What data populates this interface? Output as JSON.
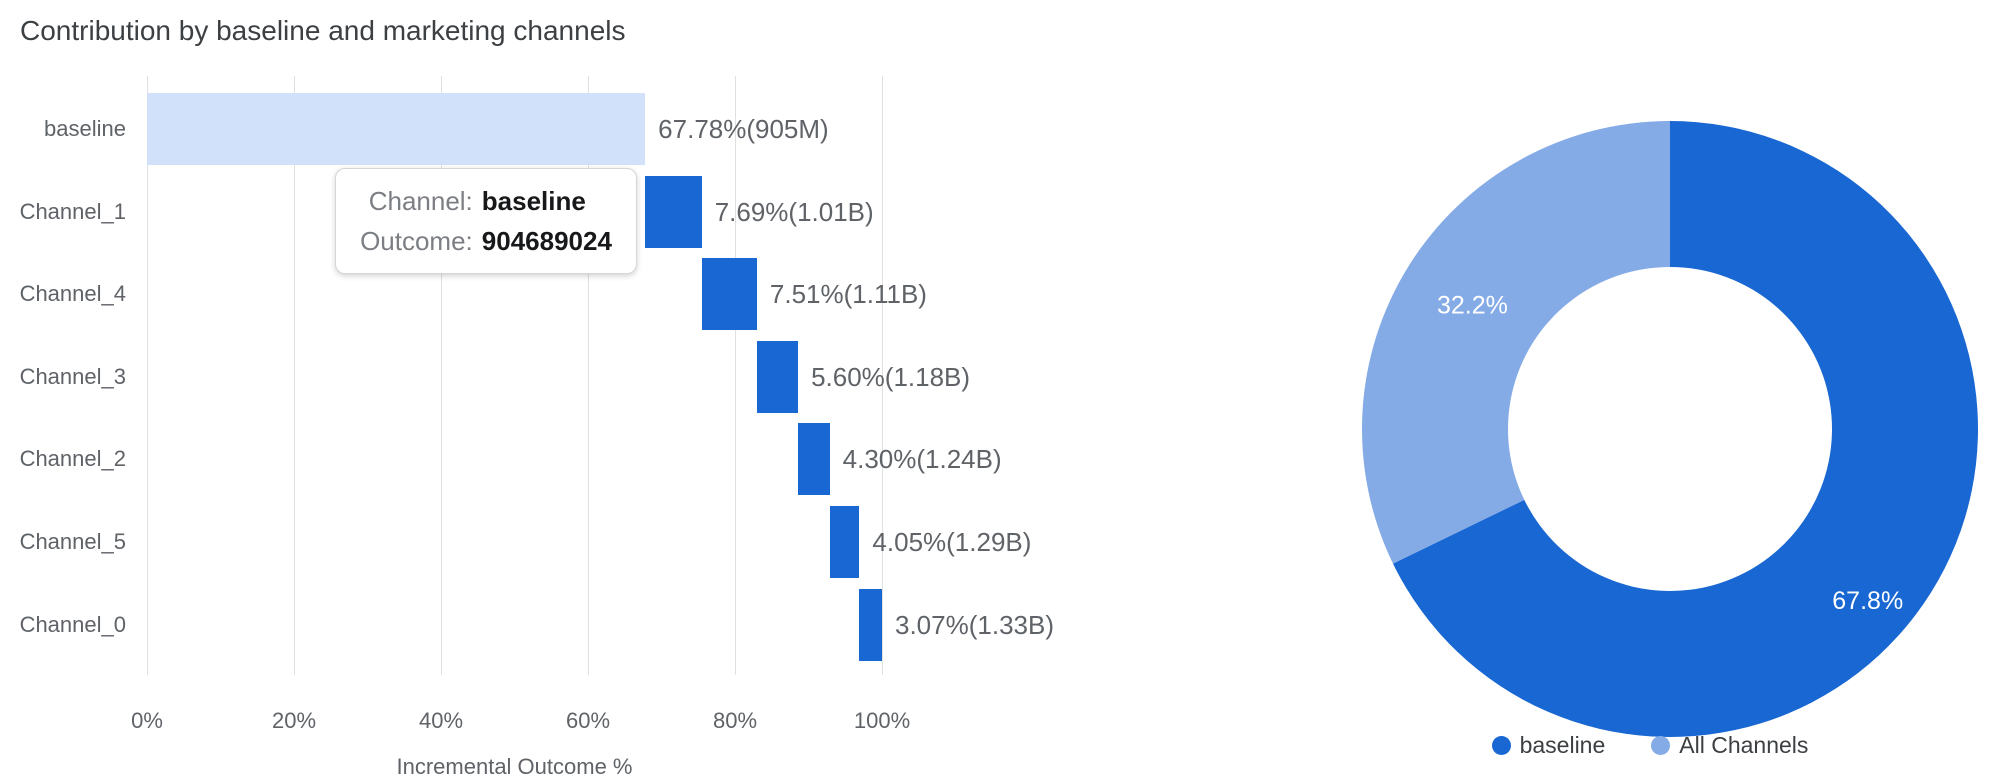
{
  "title": "Contribution by baseline and marketing channels",
  "colors": {
    "baseline_dark_blue": "#1967d2",
    "all_channels_light_blue": "#85abe6",
    "baseline_bar_fill": "#d0e1f9",
    "gridline": "#e0e0e0",
    "axis_text": "#5f6368",
    "title_text": "#3c4043"
  },
  "tooltip": {
    "rows": [
      {
        "label": "Channel:",
        "value": "baseline"
      },
      {
        "label": "Outcome:",
        "value": "904689024"
      }
    ]
  },
  "chart_data": [
    {
      "type": "bar",
      "variant": "horizontal-waterfall",
      "title": "Contribution by baseline and marketing channels",
      "categories": [
        "baseline",
        "Channel_1",
        "Channel_4",
        "Channel_3",
        "Channel_2",
        "Channel_5",
        "Channel_0"
      ],
      "series": [
        {
          "name": "Incremental Outcome %",
          "starts_pct": [
            0,
            67.78,
            75.47,
            82.98,
            88.58,
            92.88,
            96.93
          ],
          "values_pct": [
            67.78,
            7.69,
            7.51,
            5.6,
            4.3,
            4.05,
            3.07
          ],
          "ends_pct": [
            67.78,
            75.47,
            82.98,
            88.58,
            92.88,
            96.93,
            100.0
          ]
        }
      ],
      "bar_labels": [
        "67.78%(905M)",
        "7.69%(1.01B)",
        "7.51%(1.11B)",
        "5.60%(1.18B)",
        "4.30%(1.24B)",
        "4.05%(1.29B)",
        "3.07%(1.33B)"
      ],
      "bar_colors": [
        "#d0e1f9",
        "#1967d2",
        "#1967d2",
        "#1967d2",
        "#1967d2",
        "#1967d2",
        "#1967d2"
      ],
      "xlabel": "Incremental Outcome %",
      "x_tick_labels": [
        "0%",
        "20%",
        "40%",
        "60%",
        "80%",
        "100%"
      ],
      "x_tick_values": [
        0,
        20,
        40,
        60,
        80,
        100
      ],
      "xlim": [
        0,
        100
      ],
      "grid": true,
      "legend_position": "none"
    },
    {
      "type": "pie",
      "variant": "donut",
      "labels": [
        "baseline",
        "All Channels"
      ],
      "values": [
        67.8,
        32.2
      ],
      "slice_labels": [
        "67.8%",
        "32.2%"
      ],
      "slice_colors": [
        "#1967d2",
        "#85abe6"
      ],
      "start_angle_deg": 0,
      "direction": "clockwise",
      "legend_position": "bottom",
      "legend": [
        {
          "label": "baseline",
          "color": "#1967d2"
        },
        {
          "label": "All Channels",
          "color": "#85abe6"
        }
      ]
    }
  ]
}
